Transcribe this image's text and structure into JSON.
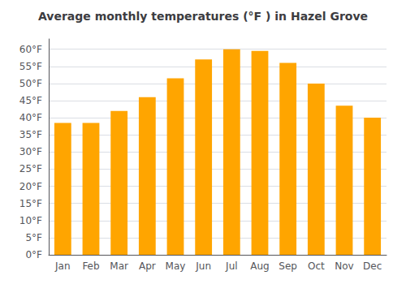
{
  "chart_data": {
    "type": "bar",
    "title": "Average monthly temperatures (°F ) in Hazel Grove",
    "categories": [
      "Jan",
      "Feb",
      "Mar",
      "Apr",
      "May",
      "Jun",
      "Jul",
      "Aug",
      "Sep",
      "Oct",
      "Nov",
      "Dec"
    ],
    "values": [
      38.5,
      38.5,
      42,
      46,
      51.5,
      57,
      60,
      59.5,
      56,
      50,
      43.5,
      40
    ],
    "color": "#FFA500",
    "ylim": [
      0,
      63
    ],
    "yticks": [
      {
        "value": 0,
        "label": "0°F"
      },
      {
        "value": 5,
        "label": "5°F"
      },
      {
        "value": 10,
        "label": "10°F"
      },
      {
        "value": 15,
        "label": "15°F"
      },
      {
        "value": 20,
        "label": "20°F"
      },
      {
        "value": 25,
        "label": "25°F"
      },
      {
        "value": 30,
        "label": "30°F"
      },
      {
        "value": 35,
        "label": "35°F"
      },
      {
        "value": 40,
        "label": "40°F"
      },
      {
        "value": 45,
        "label": "45°F"
      },
      {
        "value": 50,
        "label": "50°F"
      },
      {
        "value": 55,
        "label": "55°F"
      },
      {
        "value": 60,
        "label": "60°F"
      }
    ],
    "grid": true
  }
}
